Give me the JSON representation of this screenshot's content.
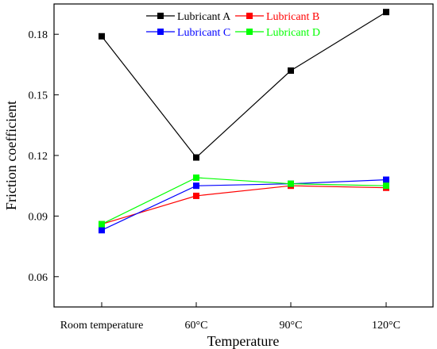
{
  "chart_data": {
    "type": "line",
    "categories": [
      "Room temperature",
      "60°C",
      "90°C",
      "120°C"
    ],
    "xlabel": "Temperature",
    "ylabel": "Friction coefficient",
    "ylim": [
      0.045,
      0.195
    ],
    "yticks": [
      0.06,
      0.09,
      0.12,
      0.15,
      0.18
    ],
    "ytick_labels": [
      "0.06",
      "0.09",
      "0.12",
      "0.15",
      "0.18"
    ],
    "grid": false,
    "legend_position": "top-center",
    "series": [
      {
        "name": "Lubricant A",
        "color": "#000000",
        "values": [
          0.179,
          0.119,
          0.162,
          0.191
        ]
      },
      {
        "name": "Lubricant B",
        "color": "#ff0000",
        "values": [
          0.086,
          0.1,
          0.105,
          0.104
        ]
      },
      {
        "name": "Lubricant C",
        "color": "#0000ff",
        "values": [
          0.083,
          0.105,
          0.106,
          0.108
        ]
      },
      {
        "name": "Lubricant D",
        "color": "#00ff00",
        "values": [
          0.086,
          0.109,
          0.106,
          0.105
        ]
      }
    ]
  }
}
